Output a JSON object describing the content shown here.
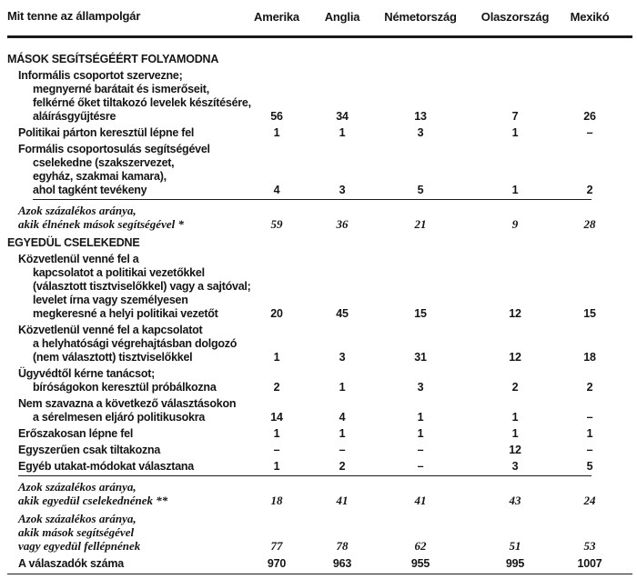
{
  "page": {
    "background": "#ffffff",
    "text_color": "#151515",
    "rule_color": "#1a1a1a"
  },
  "table": {
    "header": {
      "label": "Mit tenne az állampolgár",
      "columns": [
        "Amerika",
        "Anglia",
        "Németország",
        "Olaszország",
        "Mexikó"
      ]
    },
    "sections": [
      {
        "title": "MÁSOK SEGÍTSÉGÉÉRT FOLYAMODNA",
        "rows": [
          {
            "style": "data",
            "underline": false,
            "lines": [
              {
                "text": "Informális csoportot szervezne;",
                "indent": 1
              },
              {
                "text": "megnyerné barátait és ismerőseit,",
                "indent": 2
              },
              {
                "text": "felkérné őket tiltakozó levelek készítésére,",
                "indent": 2
              },
              {
                "text": "aláírásgyűjtésre",
                "indent": 2
              }
            ],
            "values": [
              "56",
              "34",
              "13",
              "7",
              "26"
            ]
          },
          {
            "style": "data",
            "underline": false,
            "lines": [
              {
                "text": "Politikai párton keresztül lépne fel",
                "indent": 1
              }
            ],
            "values": [
              "1",
              "1",
              "3",
              "1",
              "–"
            ]
          },
          {
            "style": "data",
            "underline": true,
            "lines": [
              {
                "text": "Formális csoportosulás segítségével",
                "indent": 1
              },
              {
                "text": "cselekedne (szakszervezet,",
                "indent": 2
              },
              {
                "text": "egyház, szakmai kamara),",
                "indent": 2
              },
              {
                "text": "ahol tagként tevékeny",
                "indent": 2
              }
            ],
            "values": [
              "4",
              "3",
              "5",
              "1",
              "2"
            ]
          },
          {
            "style": "summary",
            "underline": false,
            "lines": [
              {
                "text": "Azok százalékos aránya,",
                "indent": 1
              },
              {
                "text": "akik élnének mások segítségével *",
                "indent": 1
              }
            ],
            "values": [
              "59",
              "36",
              "21",
              "9",
              "28"
            ]
          }
        ]
      },
      {
        "title": "EGYEDÜL CSELEKEDNE",
        "rows": [
          {
            "style": "data",
            "underline": false,
            "lines": [
              {
                "text": "Közvetlenül venné fel a",
                "indent": 1
              },
              {
                "text": "kapcsolatot a politikai vezetőkkel",
                "indent": 2
              },
              {
                "text": "(választott tisztviselőkkel) vagy a sajtóval;",
                "indent": 2
              },
              {
                "text": "levelet írna vagy személyesen",
                "indent": 2
              },
              {
                "text": "megkeresné a helyi politikai vezetőt",
                "indent": 2
              }
            ],
            "values": [
              "20",
              "45",
              "15",
              "12",
              "15"
            ]
          },
          {
            "style": "data",
            "underline": false,
            "lines": [
              {
                "text": "Közvetlenül venné fel a kapcsolatot",
                "indent": 1
              },
              {
                "text": "a helyhatósági végrehajtásban dolgozó",
                "indent": 2
              },
              {
                "text": "(nem választott) tisztviselőkkel",
                "indent": 2
              }
            ],
            "values": [
              "1",
              "3",
              "31",
              "12",
              "18"
            ]
          },
          {
            "style": "data",
            "underline": false,
            "lines": [
              {
                "text": "Ügyvédtől kérne tanácsot;",
                "indent": 1
              },
              {
                "text": "bíróságokon keresztül próbálkozna",
                "indent": 2
              }
            ],
            "values": [
              "2",
              "1",
              "3",
              "2",
              "2"
            ]
          },
          {
            "style": "data",
            "underline": false,
            "lines": [
              {
                "text": "Nem szavazna a következő választásokon",
                "indent": 1
              },
              {
                "text": "a sérelmesen eljáró politikusokra",
                "indent": 2
              }
            ],
            "values": [
              "14",
              "4",
              "1",
              "1",
              "–"
            ]
          },
          {
            "style": "data",
            "underline": false,
            "lines": [
              {
                "text": "Erőszakosan lépne fel",
                "indent": 1
              }
            ],
            "values": [
              "1",
              "1",
              "1",
              "1",
              "1"
            ]
          },
          {
            "style": "data",
            "underline": false,
            "lines": [
              {
                "text": "Egyszerűen csak tiltakozna",
                "indent": 1
              }
            ],
            "values": [
              "–",
              "–",
              "–",
              "12",
              "–"
            ]
          },
          {
            "style": "data",
            "underline": true,
            "lines": [
              {
                "text": "Egyéb utakat-módokat választana",
                "indent": 1
              }
            ],
            "values": [
              "1",
              "2",
              "–",
              "3",
              "5"
            ]
          },
          {
            "style": "summary",
            "underline": false,
            "lines": [
              {
                "text": "Azok százalékos aránya,",
                "indent": 1
              },
              {
                "text": "akik egyedül cselekednének **",
                "indent": 1
              }
            ],
            "values": [
              "18",
              "41",
              "41",
              "43",
              "24"
            ]
          },
          {
            "style": "summary",
            "underline": false,
            "lines": [
              {
                "text": "Azok százalékos aránya,",
                "indent": 1
              },
              {
                "text": "akik mások segítségével",
                "indent": 1
              },
              {
                "text": "vagy egyedül fellépnének",
                "indent": 1
              }
            ],
            "values": [
              "77",
              "78",
              "62",
              "51",
              "53"
            ]
          },
          {
            "style": "data",
            "underline": false,
            "lines": [
              {
                "text": "A válaszadók száma",
                "indent": 1
              }
            ],
            "values": [
              "970",
              "963",
              "955",
              "995",
              "1007"
            ]
          }
        ]
      }
    ]
  }
}
